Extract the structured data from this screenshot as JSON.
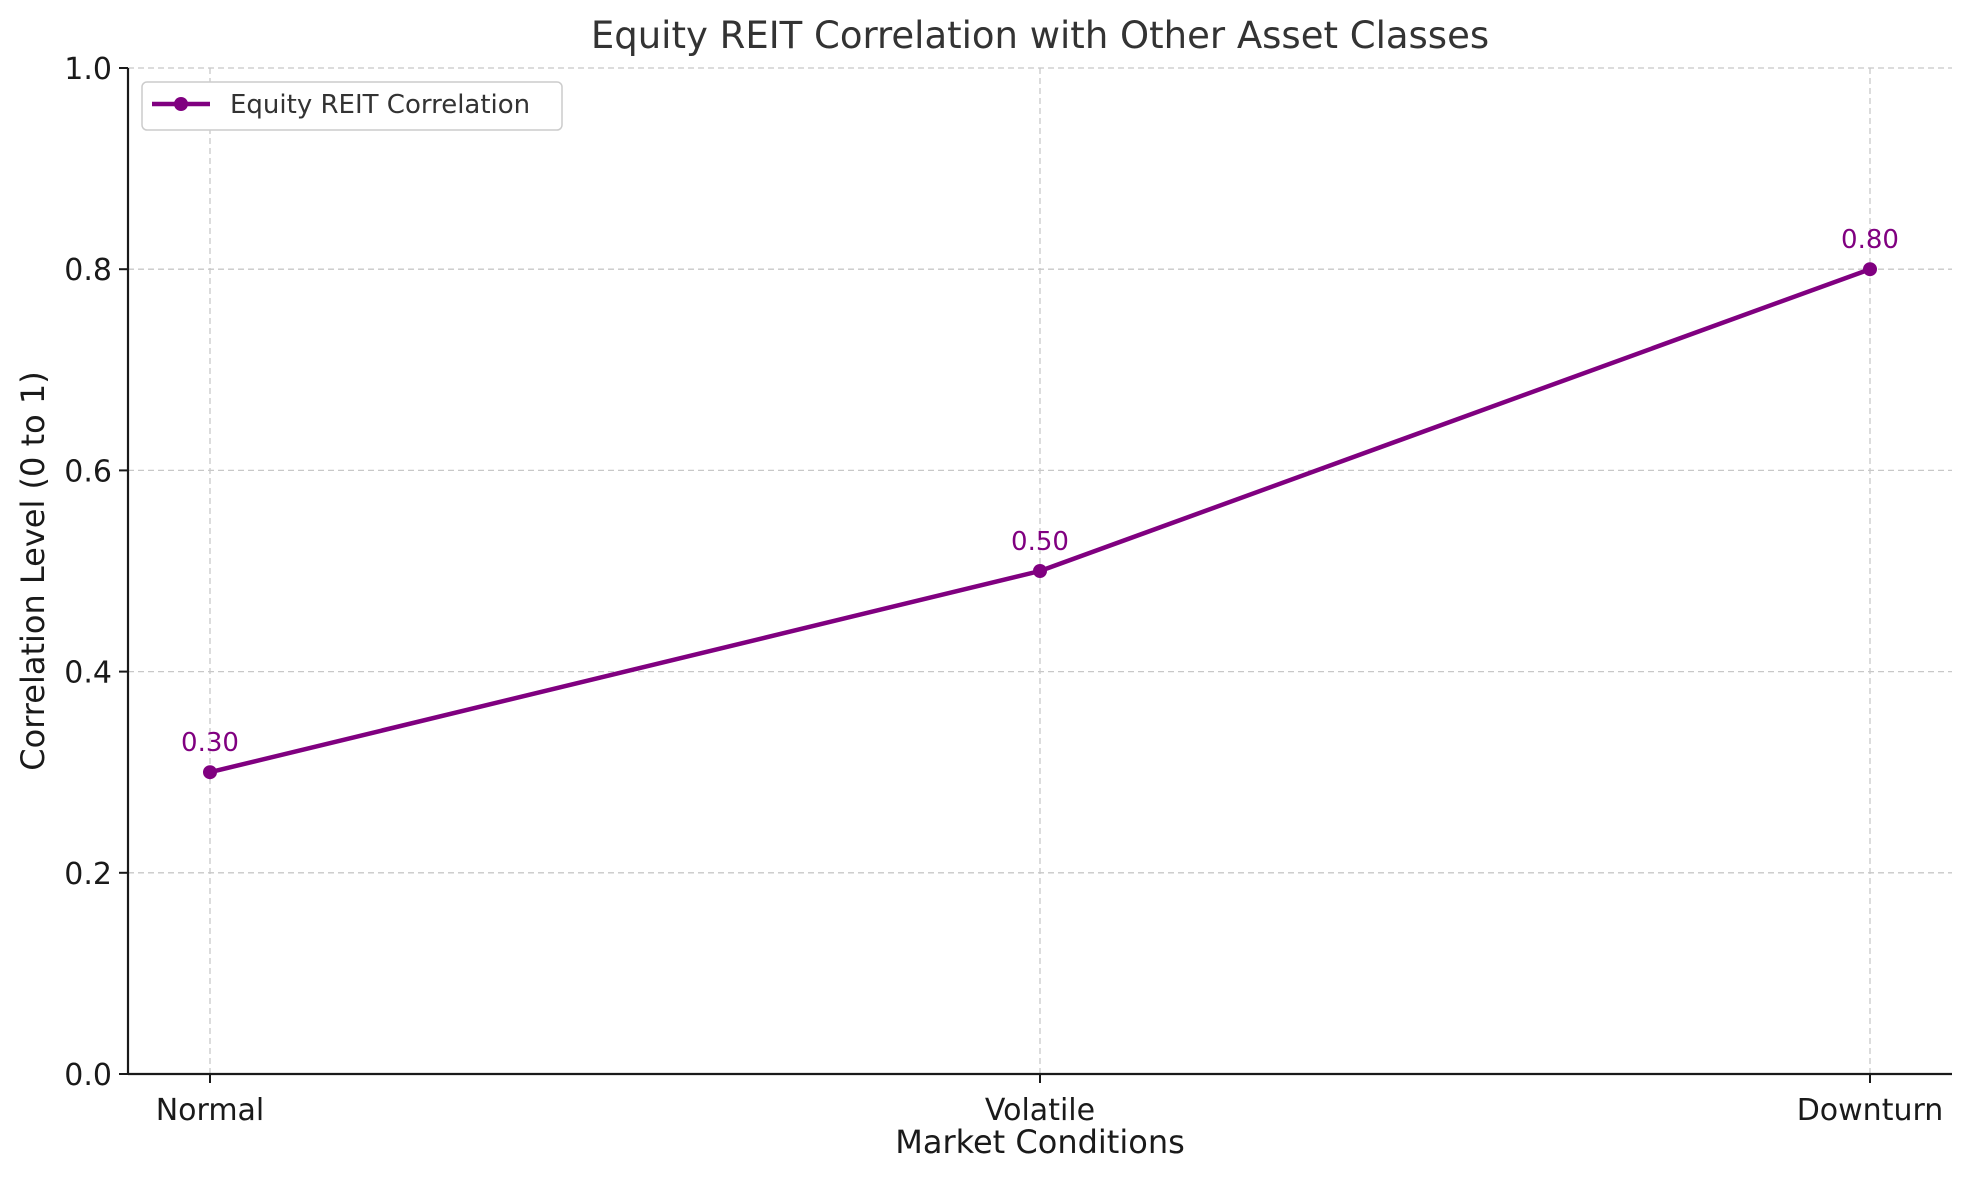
{
  "chart_data": {
    "type": "line",
    "title": "Equity REIT Correlation with Other Asset Classes",
    "xlabel": "Market Conditions",
    "ylabel": "Correlation Level (0 to 1)",
    "categories": [
      "Normal",
      "Volatile",
      "Downturn"
    ],
    "ylim": [
      0,
      1
    ],
    "yticks": [
      "0.0",
      "0.2",
      "0.4",
      "0.6",
      "0.8",
      "1.0"
    ],
    "grid": true,
    "legend_position": "top-left",
    "series": [
      {
        "name": "Equity REIT Correlation",
        "values": [
          0.3,
          0.5,
          0.8
        ],
        "data_labels": [
          "0.30",
          "0.50",
          "0.80"
        ],
        "color": "#800080"
      }
    ]
  }
}
